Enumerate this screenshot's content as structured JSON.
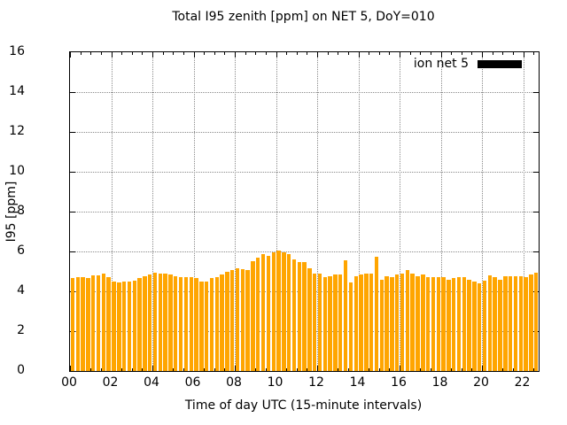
{
  "title": "Total I95 zenith [ppm] on NET 5, DoY=010",
  "legend": {
    "label": "ion net 5",
    "swatch_color": "#000000"
  },
  "axes": {
    "x_label": "Time of day UTC (15-minute intervals)",
    "y_label": "I95 [ppm]",
    "x_tick_labels": [
      "00",
      "02",
      "04",
      "06",
      "08",
      "10",
      "12",
      "14",
      "16",
      "18",
      "20",
      "22"
    ],
    "x_tick_hours": [
      0,
      2,
      4,
      6,
      8,
      10,
      12,
      14,
      16,
      18,
      20,
      22
    ],
    "y_tick_labels": [
      "0",
      "2",
      "4",
      "6",
      "8",
      "10",
      "12",
      "14",
      "16"
    ],
    "y_tick_values": [
      0,
      2,
      4,
      6,
      8,
      10,
      12,
      14,
      16
    ]
  },
  "colors": {
    "bar": "#FFA500",
    "grid": "#8a8a8a",
    "frame": "#000000",
    "background": "#ffffff"
  },
  "chart_data": {
    "type": "bar",
    "title": "Total I95 zenith [ppm] on NET 5, DoY=010",
    "xlabel": "Time of day UTC (15-minute intervals)",
    "ylabel": "I95 [ppm]",
    "xlim_hours": [
      0,
      22.75
    ],
    "ylim": [
      0,
      16
    ],
    "grid": true,
    "legend_position": "top-right-inside",
    "bar_interval_minutes": 15,
    "series": [
      {
        "name": "ion net 5",
        "color": "#FFA500",
        "start_hour": 0.0,
        "step_hours": 0.25,
        "values": [
          4.65,
          4.7,
          4.7,
          4.65,
          4.8,
          4.8,
          4.9,
          4.7,
          4.5,
          4.45,
          4.5,
          4.5,
          4.55,
          4.65,
          4.75,
          4.85,
          4.95,
          4.9,
          4.9,
          4.85,
          4.75,
          4.7,
          4.7,
          4.7,
          4.65,
          4.5,
          4.5,
          4.65,
          4.7,
          4.85,
          5.0,
          5.05,
          5.15,
          5.1,
          5.05,
          5.5,
          5.7,
          5.85,
          5.8,
          5.95,
          6.05,
          5.95,
          5.85,
          5.6,
          5.45,
          5.45,
          5.15,
          4.9,
          4.9,
          4.7,
          4.75,
          4.85,
          4.85,
          5.55,
          4.45,
          4.75,
          4.85,
          4.9,
          4.9,
          5.75,
          4.6,
          4.75,
          4.7,
          4.85,
          4.9,
          5.05,
          4.9,
          4.75,
          4.85,
          4.7,
          4.7,
          4.7,
          4.7,
          4.6,
          4.65,
          4.7,
          4.7,
          4.6,
          4.5,
          4.4,
          4.55,
          4.8,
          4.7,
          4.6,
          4.75,
          4.75,
          4.75,
          4.75,
          4.7,
          4.85,
          4.95
        ]
      }
    ]
  }
}
